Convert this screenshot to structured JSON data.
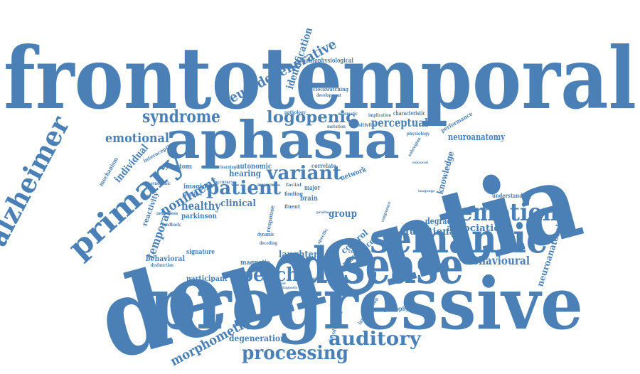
{
  "color": "#4a80b5",
  "words": [
    {
      "text": "frontotemporal",
      "weight": 1.0
    },
    {
      "text": "dementia",
      "weight": 1.0
    },
    {
      "text": "progressive",
      "weight": 0.85
    },
    {
      "text": "aphasia",
      "weight": 0.7
    },
    {
      "text": "disease",
      "weight": 0.7
    },
    {
      "text": "semantic",
      "weight": 0.6
    },
    {
      "text": "primary",
      "weight": 0.55
    },
    {
      "text": "alzheimer",
      "weight": 0.5
    },
    {
      "text": "emotion",
      "weight": 0.45
    },
    {
      "text": "speech",
      "weight": 0.4
    },
    {
      "text": "auditory",
      "weight": 0.4
    },
    {
      "text": "processing",
      "weight": 0.4
    },
    {
      "text": "patient",
      "weight": 0.38
    },
    {
      "text": "variant",
      "weight": 0.38
    },
    {
      "text": "syndrome",
      "weight": 0.35
    },
    {
      "text": "logopenic",
      "weight": 0.35
    },
    {
      "text": "neurodegenerative",
      "weight": 0.3
    },
    {
      "text": "emotional",
      "weight": 0.3
    },
    {
      "text": "morphometry",
      "weight": 0.3
    },
    {
      "text": "behavioural",
      "weight": 0.3
    },
    {
      "text": "nonfluent",
      "weight": 0.3
    },
    {
      "text": "temporal",
      "weight": 0.28
    },
    {
      "text": "perceptual",
      "weight": 0.28
    },
    {
      "text": "functional",
      "weight": 0.26
    },
    {
      "text": "association",
      "weight": 0.24
    },
    {
      "text": "neuroanatomy",
      "weight": 0.24
    },
    {
      "text": "individual",
      "weight": 0.22
    },
    {
      "text": "healthy",
      "weight": 0.25
    },
    {
      "text": "identification",
      "weight": 0.22
    },
    {
      "text": "knowledge",
      "weight": 0.2
    },
    {
      "text": "neuroanatomical",
      "weight": 0.2
    },
    {
      "text": "degeneration",
      "weight": 0.22
    },
    {
      "text": "degraded",
      "weight": 0.2
    },
    {
      "text": "group",
      "weight": 0.2
    },
    {
      "text": "laughter",
      "weight": 0.2
    },
    {
      "text": "resonance",
      "weight": 0.18
    },
    {
      "text": "control",
      "weight": 0.18
    },
    {
      "text": "clinical",
      "weight": 0.18
    },
    {
      "text": "hearing",
      "weight": 0.18
    },
    {
      "text": "autonomic",
      "weight": 0.16
    },
    {
      "text": "behavioral",
      "weight": 0.16
    },
    {
      "text": "participant",
      "weight": 0.16
    },
    {
      "text": "parkinson",
      "weight": 0.16
    },
    {
      "text": "symptom",
      "weight": 0.16
    },
    {
      "text": "imaging",
      "weight": 0.15
    },
    {
      "text": "magnetic",
      "weight": 0.15
    },
    {
      "text": "network",
      "weight": 0.15
    },
    {
      "text": "brain",
      "weight": 0.15
    },
    {
      "text": "reactivity",
      "weight": 0.14
    },
    {
      "text": "mechanism",
      "weight": 0.13
    },
    {
      "text": "interoceptive",
      "weight": 0.12
    },
    {
      "text": "signature",
      "weight": 0.12
    },
    {
      "text": "pathophysiological",
      "weight": 0.12
    },
    {
      "text": "pathophysiology",
      "weight": 0.12
    },
    {
      "text": "clockwatching",
      "weight": 0.1
    },
    {
      "text": "development",
      "weight": 0.1
    },
    {
      "text": "characteristic",
      "weight": 0.1
    },
    {
      "text": "implication",
      "weight": 0.1
    },
    {
      "text": "performance",
      "weight": 0.12
    },
    {
      "text": "understanding",
      "weight": 0.12
    },
    {
      "text": "sensitivity",
      "weight": 0.12
    },
    {
      "text": "automatic",
      "weight": 0.1
    },
    {
      "text": "mutation",
      "weight": 0.1
    },
    {
      "text": "pathology",
      "weight": 0.1
    },
    {
      "text": "physiology",
      "weight": 0.1
    },
    {
      "text": "subregion",
      "weight": 0.1
    },
    {
      "text": "correlate",
      "weight": 0.12
    },
    {
      "text": "learning",
      "weight": 0.1
    },
    {
      "text": "measure",
      "weight": 0.1
    },
    {
      "text": "accuracy",
      "weight": 0.1
    },
    {
      "text": "finding",
      "weight": 0.1
    },
    {
      "text": "fluent",
      "weight": 0.1
    },
    {
      "text": "major",
      "weight": 0.12
    },
    {
      "text": "facial",
      "weight": 0.1
    },
    {
      "text": "dynamic",
      "weight": 0.1
    },
    {
      "text": "decoding",
      "weight": 0.1
    },
    {
      "text": "disorder",
      "weight": 0.12
    },
    {
      "text": "specific",
      "weight": 0.1
    },
    {
      "text": "cognition",
      "weight": 0.1
    },
    {
      "text": "syndromic",
      "weight": 0.1
    },
    {
      "text": "cognitive",
      "weight": 0.1
    },
    {
      "text": "awareness",
      "weight": 0.1
    },
    {
      "text": "feedback",
      "weight": 0.1
    },
    {
      "text": "dysfunction",
      "weight": 0.08
    },
    {
      "text": "diagnosis",
      "weight": 0.08
    },
    {
      "text": "impairment",
      "weight": 0.08
    },
    {
      "text": "involvement",
      "weight": 0.1
    },
    {
      "text": "interoception",
      "weight": 0.1
    },
    {
      "text": "response",
      "weight": 0.12
    },
    {
      "text": "congruence",
      "weight": 0.1
    },
    {
      "text": "enhanced",
      "weight": 0.08
    },
    {
      "text": "language",
      "weight": 0.08
    },
    {
      "text": "profile",
      "weight": 0.08
    }
  ]
}
